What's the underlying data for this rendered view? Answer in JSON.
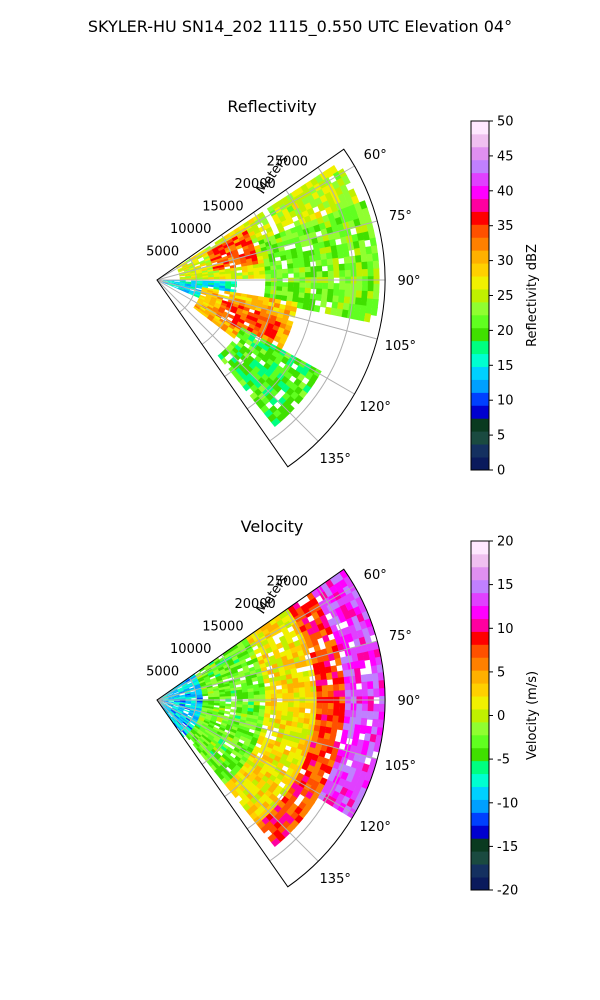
{
  "title": "SKYLER-HU  SN14_202  1115_0.550 UTC Elevation 04°",
  "chart_data": [
    {
      "type": "heatmap",
      "subtype": "polar-ppi-sector",
      "title": "Reflectivity",
      "range_axis_label": "Meters",
      "range_ticks": [
        "5000",
        "10000",
        "15000",
        "20000",
        "25000"
      ],
      "range_tick_values": [
        5000,
        10000,
        15000,
        20000,
        25000
      ],
      "rmax": 29000,
      "azimuth_ticks": [
        "60°",
        "75°",
        "90°",
        "105°",
        "120°",
        "135°"
      ],
      "azimuth_tick_values": [
        60,
        75,
        90,
        105,
        120,
        135
      ],
      "azimuth_range": [
        55,
        145
      ],
      "grid": true,
      "colorbar": {
        "label": "Reflectivity dBZ",
        "range": [
          0,
          50
        ],
        "ticks": [
          "0",
          "5",
          "10",
          "15",
          "20",
          "25",
          "30",
          "35",
          "40",
          "45",
          "50"
        ],
        "tick_values": [
          0,
          5,
          10,
          15,
          20,
          25,
          30,
          35,
          40,
          45,
          50
        ],
        "colors": [
          "#0a1a5c",
          "#143060",
          "#1a4a40",
          "#0a3a20",
          "#0000d0",
          "#0040ff",
          "#00a0ff",
          "#00d0ff",
          "#00ffd0",
          "#00ff80",
          "#40e000",
          "#60ff20",
          "#90ff30",
          "#c0f000",
          "#f0f000",
          "#ffd000",
          "#ffb000",
          "#ff8000",
          "#ff5000",
          "#ff0000",
          "#ff00a0",
          "#ff00ff",
          "#e040ff",
          "#c080ff",
          "#e090f0",
          "#f0c0f0",
          "#ffe8ff"
        ]
      },
      "field_regions": [
        {
          "az": [
            57,
            88
          ],
          "r": [
            3000,
            16000
          ],
          "value": 26
        },
        {
          "az": [
            62,
            80
          ],
          "r": [
            7000,
            13000
          ],
          "value": 34
        },
        {
          "az": [
            58,
            68
          ],
          "r": [
            17000,
            27500
          ],
          "value": 25
        },
        {
          "az": [
            70,
            100
          ],
          "r": [
            14000,
            28000
          ],
          "value": 22
        },
        {
          "az": [
            92,
            112
          ],
          "r": [
            1000,
            10000
          ],
          "value": 15
        },
        {
          "az": [
            100,
            126
          ],
          "r": [
            6000,
            18000
          ],
          "value": 30
        },
        {
          "az": [
            108,
            120
          ],
          "r": [
            9000,
            17000
          ],
          "value": 34
        },
        {
          "az": [
            120,
            140
          ],
          "r": [
            12000,
            24000
          ],
          "value": 20
        }
      ]
    },
    {
      "type": "heatmap",
      "subtype": "polar-ppi-sector",
      "title": "Velocity",
      "range_axis_label": "Meters",
      "range_ticks": [
        "5000",
        "10000",
        "15000",
        "20000",
        "25000"
      ],
      "range_tick_values": [
        5000,
        10000,
        15000,
        20000,
        25000
      ],
      "rmax": 29000,
      "azimuth_ticks": [
        "60°",
        "75°",
        "90°",
        "105°",
        "120°",
        "135°"
      ],
      "azimuth_tick_values": [
        60,
        75,
        90,
        105,
        120,
        135
      ],
      "azimuth_range": [
        55,
        145
      ],
      "grid": true,
      "colorbar": {
        "label": "Velocity (m/s)",
        "range": [
          -20,
          20
        ],
        "ticks": [
          "-20",
          "-15",
          "-10",
          "-5",
          "0",
          "5",
          "10",
          "15",
          "20"
        ],
        "tick_values": [
          -20,
          -15,
          -10,
          -5,
          0,
          5,
          10,
          15,
          20
        ],
        "colors": [
          "#0a1a5c",
          "#143060",
          "#1a4a40",
          "#0a3a20",
          "#0000d0",
          "#0040ff",
          "#00a0ff",
          "#00d0ff",
          "#00ffd0",
          "#00ff80",
          "#40e000",
          "#60ff20",
          "#90ff30",
          "#c0f000",
          "#f0f000",
          "#ffd000",
          "#ffb000",
          "#ff8000",
          "#ff5000",
          "#ff0000",
          "#ff00a0",
          "#ff00ff",
          "#e040ff",
          "#c080ff",
          "#e090f0",
          "#f0c0f0",
          "#ffe8ff"
        ]
      },
      "field_regions": [
        {
          "az": [
            55,
            145
          ],
          "r": [
            0,
            6000
          ],
          "value": -9
        },
        {
          "az": [
            55,
            140
          ],
          "r": [
            6000,
            14000
          ],
          "value": -3
        },
        {
          "az": [
            55,
            140
          ],
          "r": [
            14000,
            20000
          ],
          "value": 2
        },
        {
          "az": [
            55,
            140
          ],
          "r": [
            20000,
            24000
          ],
          "value": 8
        },
        {
          "az": [
            55,
            120
          ],
          "r": [
            24000,
            29000
          ],
          "value": 13
        }
      ]
    }
  ]
}
